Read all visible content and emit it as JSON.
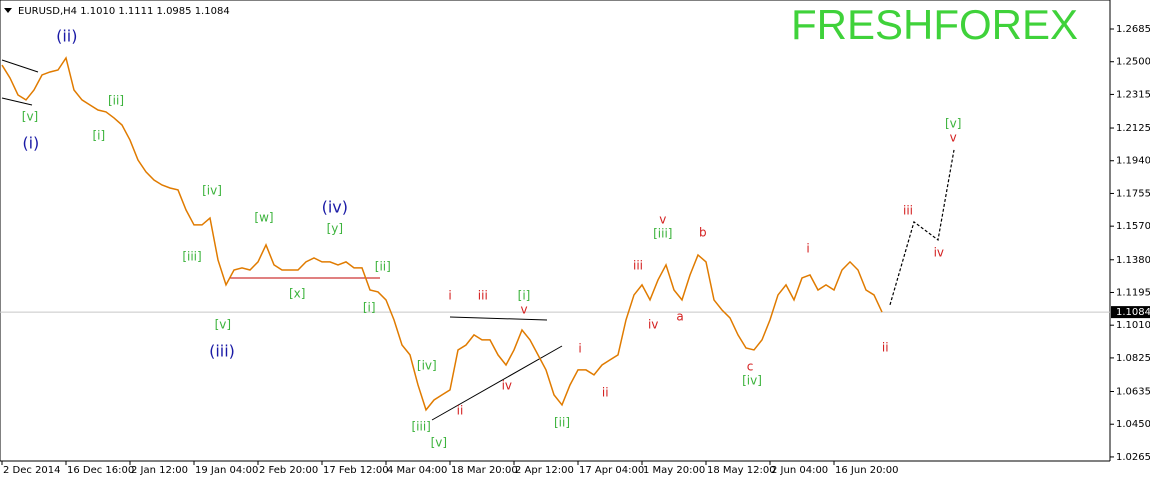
{
  "chart_data": {
    "type": "line",
    "header": "EURUSD,H4  1.1010 1.1111 1.0985 1.1084",
    "watermark": "FRESHFOREX",
    "watermark_color": "#3fd23a",
    "color": "#e07b00",
    "last_price": 1.1084,
    "ylim": [
      1.0242,
      1.2849
    ],
    "yticks": [
      1.2685,
      {
        "value": 1.25,
        "label": "1.2500"
      },
      1.2315,
      1.2125,
      {
        "value": 1.194,
        "label": "1.1940"
      },
      1.1755,
      {
        "value": 1.157,
        "label": "1.1570"
      },
      {
        "value": 1.138,
        "label": "1.1380"
      },
      1.1195,
      {
        "value": 1.101,
        "label": "1.1010"
      },
      1.0825,
      1.0635,
      {
        "value": 1.045,
        "label": "1.0450"
      },
      1.0265
    ],
    "categories": [
      "2 Dec 2014",
      null,
      null,
      null,
      null,
      null,
      null,
      null,
      "16 Dec 16:00",
      null,
      null,
      null,
      null,
      null,
      null,
      null,
      "2 Jan 12:00",
      null,
      null,
      null,
      null,
      null,
      null,
      null,
      "19 Jan 04:00",
      null,
      null,
      null,
      null,
      null,
      null,
      null,
      "2 Feb 20:00",
      null,
      null,
      null,
      null,
      null,
      null,
      null,
      "17 Feb 12:00",
      null,
      null,
      null,
      null,
      null,
      null,
      null,
      "4 Mar 04:00",
      null,
      null,
      null,
      null,
      null,
      null,
      null,
      "18 Mar 20:00",
      null,
      null,
      null,
      null,
      null,
      null,
      null,
      "2 Apr 12:00",
      null,
      null,
      null,
      null,
      null,
      null,
      null,
      "17 Apr 04:00",
      null,
      null,
      null,
      null,
      null,
      null,
      null,
      "1 May 20:00",
      null,
      null,
      null,
      null,
      null,
      null,
      null,
      "18 May 12:00",
      null,
      null,
      null,
      null,
      null,
      null,
      null,
      "2 Jun 04:00",
      null,
      null,
      null,
      null,
      null,
      null,
      null,
      "16 Jun 20:00",
      null,
      null,
      null,
      null,
      null,
      null
    ],
    "values": [
      1.2481,
      1.2408,
      1.2312,
      1.2284,
      1.234,
      1.2425,
      1.2442,
      1.2453,
      1.2521,
      1.234,
      1.2284,
      1.2255,
      1.2227,
      1.2216,
      1.2182,
      1.2142,
      1.2057,
      1.1944,
      1.1877,
      1.1831,
      1.1803,
      1.1786,
      1.1775,
      1.1662,
      1.1577,
      1.1577,
      1.1616,
      1.1379,
      1.1238,
      1.1322,
      1.1334,
      1.1322,
      1.1368,
      1.1464,
      1.1351,
      1.1322,
      1.1322,
      1.1322,
      1.1368,
      1.139,
      1.1368,
      1.1368,
      1.1351,
      1.1368,
      1.1334,
      1.1334,
      1.1209,
      1.1198,
      1.1153,
      1.104,
      1.0898,
      1.0842,
      1.0672,
      1.0531,
      1.0587,
      1.0616,
      1.0644,
      1.087,
      1.0898,
      1.0955,
      1.0927,
      1.0927,
      1.0842,
      1.0785,
      1.087,
      1.0983,
      1.0927,
      1.0842,
      1.0757,
      1.0616,
      1.0559,
      1.0672,
      1.0757,
      1.0757,
      1.0729,
      1.0785,
      1.0814,
      1.0842,
      1.104,
      1.1181,
      1.1238,
      1.1153,
      1.1266,
      1.1351,
      1.1209,
      1.1153,
      1.1294,
      1.1407,
      1.1368,
      1.1153,
      1.1096,
      1.1051,
      1.0955,
      1.0881,
      1.087,
      1.0927,
      1.104,
      1.1181,
      1.1238,
      1.1153,
      1.1277,
      1.1294,
      1.1209,
      1.1238,
      1.1209,
      1.1322,
      1.1368,
      1.1322,
      1.1209,
      1.1181,
      1.1084
    ],
    "projection": {
      "x": [
        111,
        114,
        117,
        119
      ],
      "values": [
        1.1125,
        1.1594,
        1.1492,
        1.2001
      ],
      "color": "#000000"
    },
    "annotations": [
      {
        "text": "(ii)",
        "color": "#1a1aa6",
        "x": 8.1,
        "y": 1.264
      },
      {
        "text": "(i)",
        "color": "#1a1aa6",
        "x": 3.6,
        "y": 1.2035
      },
      {
        "text": "(iv)",
        "color": "#1a1aa6",
        "x": 41.6,
        "y": 1.1673
      },
      {
        "text": "(iii)",
        "color": "#1a1aa6",
        "x": 27.5,
        "y": 1.0859
      },
      {
        "text": "[v]",
        "color": "#3cb33c",
        "x": 3.5,
        "y": 1.2187
      },
      {
        "text": "[ii]",
        "color": "#3cb33c",
        "x": 14.25,
        "y": 1.2278
      },
      {
        "text": "[i]",
        "color": "#3cb33c",
        "x": 12.1,
        "y": 1.208
      },
      {
        "text": "[iv]",
        "color": "#3cb33c",
        "x": 26.25,
        "y": 1.1769
      },
      {
        "text": "[iii]",
        "color": "#3cb33c",
        "x": 23.75,
        "y": 1.1396
      },
      {
        "text": "[v]",
        "color": "#3cb33c",
        "x": 27.6,
        "y": 1.1011
      },
      {
        "text": "[w]",
        "color": "#3cb33c",
        "x": 32.75,
        "y": 1.1616
      },
      {
        "text": "[y]",
        "color": "#3cb33c",
        "x": 41.6,
        "y": 1.1554
      },
      {
        "text": "[x]",
        "color": "#3cb33c",
        "x": 36.9,
        "y": 1.1187
      },
      {
        "text": "[ii]",
        "color": "#3cb33c",
        "x": 47.6,
        "y": 1.1339
      },
      {
        "text": "[i]",
        "color": "#3cb33c",
        "x": 45.9,
        "y": 1.1108
      },
      {
        "text": "[iv]",
        "color": "#3cb33c",
        "x": 53.1,
        "y": 1.078
      },
      {
        "text": "[iii]",
        "color": "#3cb33c",
        "x": 52.4,
        "y": 1.0435
      },
      {
        "text": "[v]",
        "color": "#3cb33c",
        "x": 54.6,
        "y": 1.0344
      },
      {
        "text": "[i]",
        "color": "#3cb33c",
        "x": 65.25,
        "y": 1.1175
      },
      {
        "text": "[ii]",
        "color": "#3cb33c",
        "x": 70,
        "y": 1.0457
      },
      {
        "text": "[iii]",
        "color": "#3cb33c",
        "x": 82.6,
        "y": 1.1526
      },
      {
        "text": "[iv]",
        "color": "#3cb33c",
        "x": 93.75,
        "y": 1.0695
      },
      {
        "text": "[v]",
        "color": "#3cb33c",
        "x": 118.9,
        "y": 1.2148
      },
      {
        "text": "i",
        "color": "#d42020",
        "x": 56,
        "y": 1.1175
      },
      {
        "text": "iii",
        "color": "#d42020",
        "x": 60.1,
        "y": 1.1175
      },
      {
        "text": "v",
        "color": "#d42020",
        "x": 65.25,
        "y": 1.1096
      },
      {
        "text": "ii",
        "color": "#d42020",
        "x": 57.25,
        "y": 1.0525
      },
      {
        "text": "iv",
        "color": "#d42020",
        "x": 63.1,
        "y": 1.0667
      },
      {
        "text": "i",
        "color": "#d42020",
        "x": 72.25,
        "y": 1.0876
      },
      {
        "text": "ii",
        "color": "#d42020",
        "x": 75.4,
        "y": 1.0627
      },
      {
        "text": "iii",
        "color": "#d42020",
        "x": 79.5,
        "y": 1.1345
      },
      {
        "text": "v",
        "color": "#d42020",
        "x": 82.6,
        "y": 1.1605
      },
      {
        "text": "iv",
        "color": "#d42020",
        "x": 81.4,
        "y": 1.1011
      },
      {
        "text": "b",
        "color": "#d42020",
        "x": 87.6,
        "y": 1.1532
      },
      {
        "text": "a",
        "color": "#d42020",
        "x": 84.75,
        "y": 1.1057
      },
      {
        "text": "c",
        "color": "#d42020",
        "x": 93.5,
        "y": 1.0774
      },
      {
        "text": "i",
        "color": "#d42020",
        "x": 100.75,
        "y": 1.1441
      },
      {
        "text": "ii",
        "color": "#d42020",
        "x": 110.4,
        "y": 1.0881
      },
      {
        "text": "iii",
        "color": "#d42020",
        "x": 113.25,
        "y": 1.1656
      },
      {
        "text": "iv",
        "color": "#d42020",
        "x": 117.1,
        "y": 1.1419
      },
      {
        "text": "v",
        "color": "#d42020",
        "x": 118.9,
        "y": 1.2069
      }
    ]
  }
}
